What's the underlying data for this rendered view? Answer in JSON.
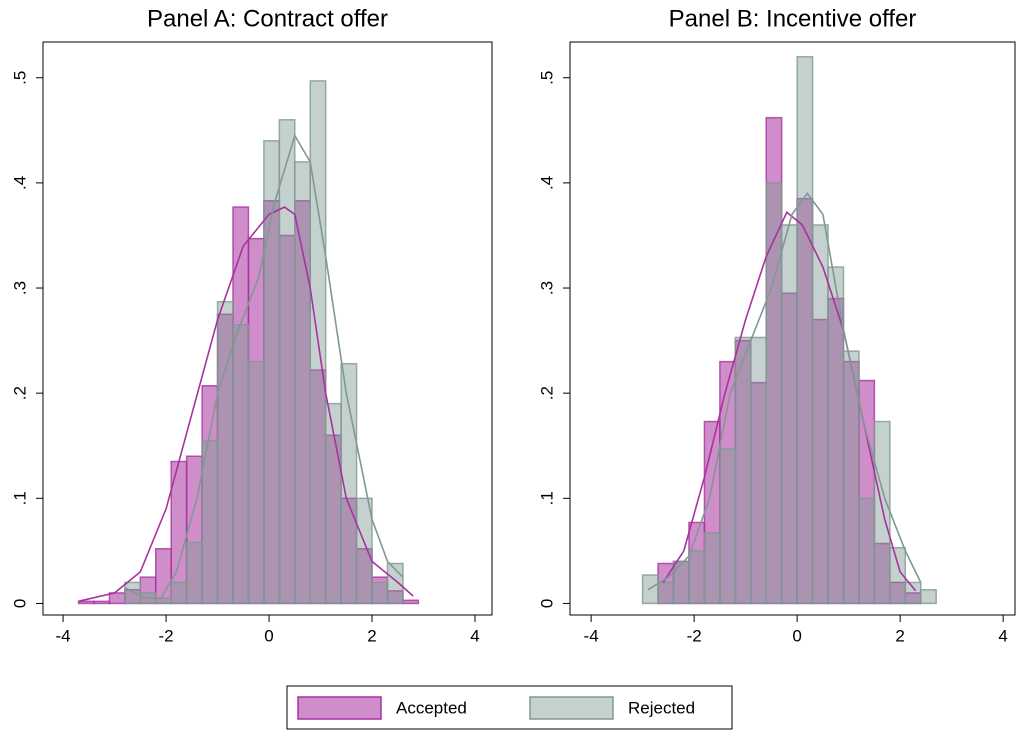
{
  "chart_data": [
    {
      "type": "histogram",
      "title": "Panel A: Contract offer",
      "xlim": [
        -4.39,
        4.33
      ],
      "ylim": [
        -0.011,
        0.534
      ],
      "xticks": [
        -4,
        -2,
        0,
        2,
        4
      ],
      "yticks": [
        0,
        {
          "value": 0.1,
          "label": ".1"
        },
        {
          "value": 0.2,
          "label": ".2"
        },
        {
          "value": 0.3,
          "label": ".3"
        },
        {
          "value": 0.4,
          "label": ".4"
        },
        {
          "value": 0.5,
          "label": ".5"
        }
      ],
      "series": [
        {
          "name": "Accepted",
          "color": "#a8329f",
          "bins": [
            -3.7,
            -3.4,
            -3.1,
            -2.8,
            -2.5,
            -2.2,
            -1.9,
            -1.6,
            -1.3,
            -1.0,
            -0.7,
            -0.4,
            -0.1,
            0.2,
            0.5,
            0.8,
            1.1,
            1.4,
            1.7,
            2.0,
            2.3,
            2.6,
            2.9
          ],
          "values": [
            0.002,
            0.002,
            0.01,
            0.013,
            0.025,
            0.052,
            0.135,
            0.14,
            0.207,
            0.275,
            0.377,
            0.347,
            0.383,
            0.35,
            0.383,
            0.222,
            0.16,
            0.1,
            0.052,
            0.025,
            0.012,
            0.003
          ],
          "density_x": [
            -3.7,
            -3.0,
            -2.5,
            -2.0,
            -1.5,
            -1.0,
            -0.5,
            0,
            0.3,
            0.5,
            0.8,
            1.1,
            1.5,
            2.0,
            2.5,
            2.8
          ],
          "density_y": [
            0.002,
            0.01,
            0.03,
            0.09,
            0.18,
            0.27,
            0.34,
            0.37,
            0.377,
            0.37,
            0.3,
            0.2,
            0.1,
            0.04,
            0.02,
            0.007
          ]
        },
        {
          "name": "Rejected",
          "color": "#7f9a92",
          "bins": [
            -2.8,
            -2.5,
            -2.2,
            -1.9,
            -1.6,
            -1.3,
            -1.0,
            -0.7,
            -0.4,
            -0.1,
            0.2,
            0.5,
            0.8,
            1.1,
            1.4,
            1.7,
            2.0,
            2.3,
            2.6
          ],
          "values": [
            0.02,
            0.01,
            0.005,
            0.02,
            0.058,
            0.155,
            0.287,
            0.265,
            0.23,
            0.44,
            0.46,
            0.42,
            0.497,
            0.19,
            0.228,
            0.1,
            0.02,
            0.038
          ],
          "density_x": [
            -2.8,
            -2.4,
            -2.1,
            -1.8,
            -1.4,
            -1.0,
            -0.6,
            -0.2,
            0.1,
            0.5,
            0.8,
            1.1,
            1.5,
            2.0,
            2.3,
            2.6
          ],
          "density_y": [
            0.015,
            0.005,
            0.005,
            0.03,
            0.1,
            0.2,
            0.26,
            0.31,
            0.38,
            0.445,
            0.42,
            0.33,
            0.2,
            0.08,
            0.04,
            0.025
          ]
        }
      ]
    },
    {
      "type": "histogram",
      "title": "Panel B: Incentive offer",
      "xlim": [
        -4.41,
        4.23
      ],
      "ylim": [
        -0.011,
        0.534
      ],
      "xticks": [
        -4,
        -2,
        0,
        2,
        4
      ],
      "yticks": [
        0,
        {
          "value": 0.1,
          "label": ".1"
        },
        {
          "value": 0.2,
          "label": ".2"
        },
        {
          "value": 0.3,
          "label": ".3"
        },
        {
          "value": 0.4,
          "label": ".4"
        },
        {
          "value": 0.5,
          "label": ".5"
        }
      ],
      "series": [
        {
          "color": "#a8329f",
          "bins": [
            -2.7,
            -2.4,
            -2.1,
            -1.8,
            -1.5,
            -1.2,
            -0.9,
            -0.6,
            -0.3,
            0,
            0.3,
            0.6,
            0.9,
            1.2,
            1.5,
            1.8,
            2.1,
            2.4
          ],
          "values": [
            0.038,
            0.04,
            0.077,
            0.173,
            0.23,
            0.25,
            0.21,
            0.462,
            0.295,
            0.385,
            0.27,
            0.29,
            0.23,
            0.212,
            0.057,
            0.02,
            0.01
          ],
          "density_x": [
            -2.6,
            -2.2,
            -1.8,
            -1.4,
            -1.0,
            -0.6,
            -0.2,
            0.1,
            0.5,
            0.9,
            1.3,
            1.7,
            2.0,
            2.3
          ],
          "density_y": [
            0.02,
            0.05,
            0.12,
            0.2,
            0.27,
            0.33,
            0.372,
            0.36,
            0.32,
            0.26,
            0.17,
            0.08,
            0.03,
            0.012
          ]
        },
        {
          "color": "#7f9a92",
          "bins": [
            -3.0,
            -2.7,
            -2.4,
            -2.1,
            -1.8,
            -1.5,
            -1.2,
            -0.9,
            -0.6,
            -0.3,
            0,
            0.3,
            0.6,
            0.9,
            1.2,
            1.5,
            1.8,
            2.1,
            2.4,
            2.7
          ],
          "values": [
            0.027,
            0.02,
            0.04,
            0.05,
            0.067,
            0.147,
            0.253,
            0.253,
            0.4,
            0.36,
            0.52,
            0.36,
            0.32,
            0.24,
            0.1,
            0.173,
            0.053,
            0.02,
            0.013
          ],
          "density_x": [
            -2.9,
            -2.5,
            -2.1,
            -1.7,
            -1.3,
            -0.9,
            -0.5,
            -0.1,
            0.2,
            0.5,
            0.9,
            1.3,
            1.7,
            2.1,
            2.4
          ],
          "density_y": [
            0.013,
            0.025,
            0.045,
            0.1,
            0.2,
            0.25,
            0.3,
            0.37,
            0.39,
            0.37,
            0.26,
            0.17,
            0.1,
            0.05,
            0.02
          ]
        }
      ]
    }
  ]
}
